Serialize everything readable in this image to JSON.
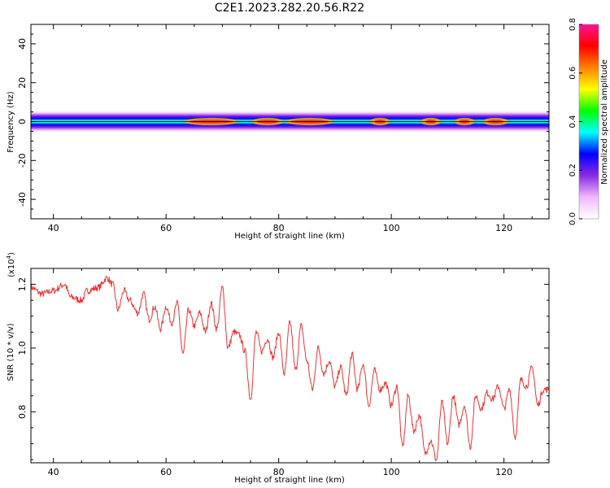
{
  "title": "C2E1.2023.282.20.56.R22",
  "colors": {
    "trace": "#e83434",
    "axis": "#000000",
    "colorbar_stops": [
      "#ffffff",
      "#f1b8ff",
      "#8a2be2",
      "#0000ff",
      "#00ffff",
      "#00ff00",
      "#ffff00",
      "#ff8000",
      "#ff0000",
      "#ff1493"
    ]
  },
  "chart_data": [
    {
      "type": "heatmap",
      "xlabel": "Height of straight line (km)",
      "ylabel": "Frequency (Hz)",
      "xlim": [
        36,
        128
      ],
      "ylim": [
        -50,
        50
      ],
      "xticks": [
        40,
        60,
        80,
        100,
        120
      ],
      "yticks": [
        -40,
        -20,
        0,
        20,
        40
      ],
      "colorbar": {
        "label": "Normalized spectral amplitude",
        "range": [
          0.0,
          0.8
        ],
        "ticks": [
          "0.0",
          "0.2",
          "0.4",
          "0.6",
          "0.8"
        ]
      },
      "band": {
        "center_hz": 0,
        "envelope_half_width_hz": 6,
        "core_half_width_hz": 1.5,
        "peak_segments": [
          {
            "x": [
              64,
              72
            ],
            "value": 0.75
          },
          {
            "x": [
              76,
              80
            ],
            "value": 0.75
          },
          {
            "x": [
              82,
              89
            ],
            "value": 0.78
          },
          {
            "x": [
              97,
              99
            ],
            "value": 0.72
          },
          {
            "x": [
              106,
              108
            ],
            "value": 0.72
          },
          {
            "x": [
              112,
              114
            ],
            "value": 0.7
          },
          {
            "x": [
              117,
              120
            ],
            "value": 0.7
          }
        ]
      }
    },
    {
      "type": "line",
      "xlabel": "Height of straight line (km)",
      "ylabel": "SNR (10 * v/v)",
      "y_multiplier": "(x10",
      "y_multiplier_exp": "4",
      "y_multiplier_close": ")",
      "xlim": [
        36,
        128
      ],
      "ylim": [
        0.64,
        1.25
      ],
      "xticks": [
        40,
        60,
        80,
        100,
        120
      ],
      "yticks": [
        "0.8",
        "1.0",
        "1.2"
      ],
      "ytick_values": [
        0.8,
        1.0,
        1.2
      ],
      "series": [
        {
          "x": [
            36,
            38,
            40,
            42,
            43,
            45,
            46,
            48,
            49.5,
            50.5,
            51.5,
            52.5,
            53.5,
            55,
            56,
            57,
            58,
            59,
            60,
            61,
            62,
            63,
            64,
            65,
            66,
            67,
            68,
            69,
            70,
            71,
            72,
            73,
            74,
            75,
            76,
            77,
            78,
            79,
            80,
            81,
            82,
            83,
            84,
            85,
            86,
            87,
            88,
            89,
            90,
            91,
            92,
            93,
            94,
            95,
            96,
            97,
            98,
            99,
            100,
            101,
            102,
            103,
            104,
            105,
            106,
            107,
            108,
            109,
            110,
            111,
            112,
            113,
            114,
            115,
            116,
            117,
            118,
            119,
            120,
            121,
            122,
            123,
            124,
            125,
            126,
            127,
            128
          ],
          "y": [
            1.19,
            1.17,
            1.18,
            1.2,
            1.16,
            1.15,
            1.18,
            1.19,
            1.22,
            1.2,
            1.12,
            1.18,
            1.15,
            1.11,
            1.17,
            1.09,
            1.13,
            1.06,
            1.13,
            1.08,
            1.14,
            0.98,
            1.12,
            1.07,
            1.11,
            1.05,
            1.14,
            1.06,
            1.19,
            1.0,
            1.05,
            1.04,
            0.99,
            0.84,
            1.05,
            0.99,
            1.03,
            0.97,
            1.05,
            0.92,
            1.08,
            0.93,
            1.07,
            0.96,
            0.87,
            1.0,
            0.92,
            0.96,
            0.88,
            0.94,
            0.85,
            0.98,
            0.87,
            0.95,
            0.82,
            0.93,
            0.87,
            0.89,
            0.82,
            0.88,
            0.69,
            0.85,
            0.74,
            0.79,
            0.67,
            0.71,
            0.65,
            0.83,
            0.7,
            0.85,
            0.76,
            0.82,
            0.69,
            0.85,
            0.81,
            0.86,
            0.84,
            0.88,
            0.81,
            0.87,
            0.72,
            0.9,
            0.88,
            0.94,
            0.82,
            0.87,
            0.87
          ]
        }
      ]
    }
  ]
}
